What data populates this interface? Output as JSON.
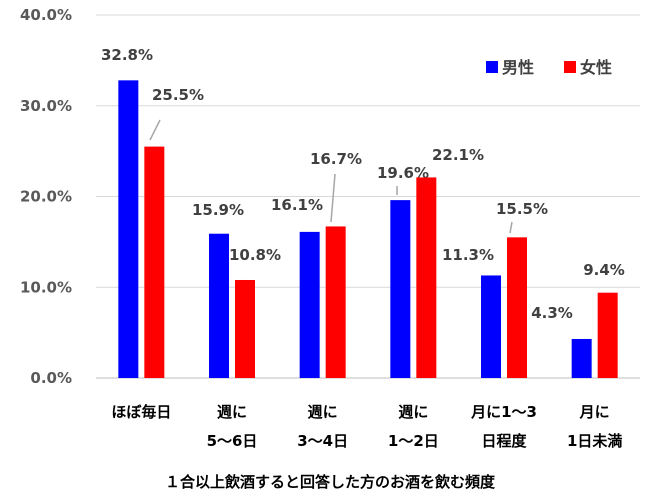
{
  "chart_data": {
    "type": "bar",
    "title": "",
    "xlabel": "１合以上飲酒すると回答した方のお酒を飲む頻度",
    "ylabel": "",
    "ylim": [
      0,
      40
    ],
    "yticks": [
      "0.0%",
      "10.0%",
      "20.0%",
      "30.0%",
      "40.0%"
    ],
    "grid": true,
    "legend_position": "top-right",
    "categories": [
      [
        "ほぼ毎日"
      ],
      [
        "週に",
        "5～6日"
      ],
      [
        "週に",
        "3～4日"
      ],
      [
        "週に",
        "1～2日"
      ],
      [
        "月に1～3",
        "日程度"
      ],
      [
        "月に",
        "1日未満"
      ]
    ],
    "series": [
      {
        "name": "男性",
        "color": "#0000ff",
        "values": [
          32.8,
          15.9,
          16.1,
          19.6,
          11.3,
          4.3
        ],
        "labels": [
          "32.8%",
          "15.9%",
          "16.1%",
          "19.6%",
          "11.3%",
          "4.3%"
        ]
      },
      {
        "name": "女性",
        "color": "#ff0000",
        "values": [
          25.5,
          10.8,
          16.7,
          22.1,
          15.5,
          9.4
        ],
        "labels": [
          "25.5%",
          "10.8%",
          "16.7%",
          "22.1%",
          "15.5%",
          "9.4%"
        ]
      }
    ]
  }
}
